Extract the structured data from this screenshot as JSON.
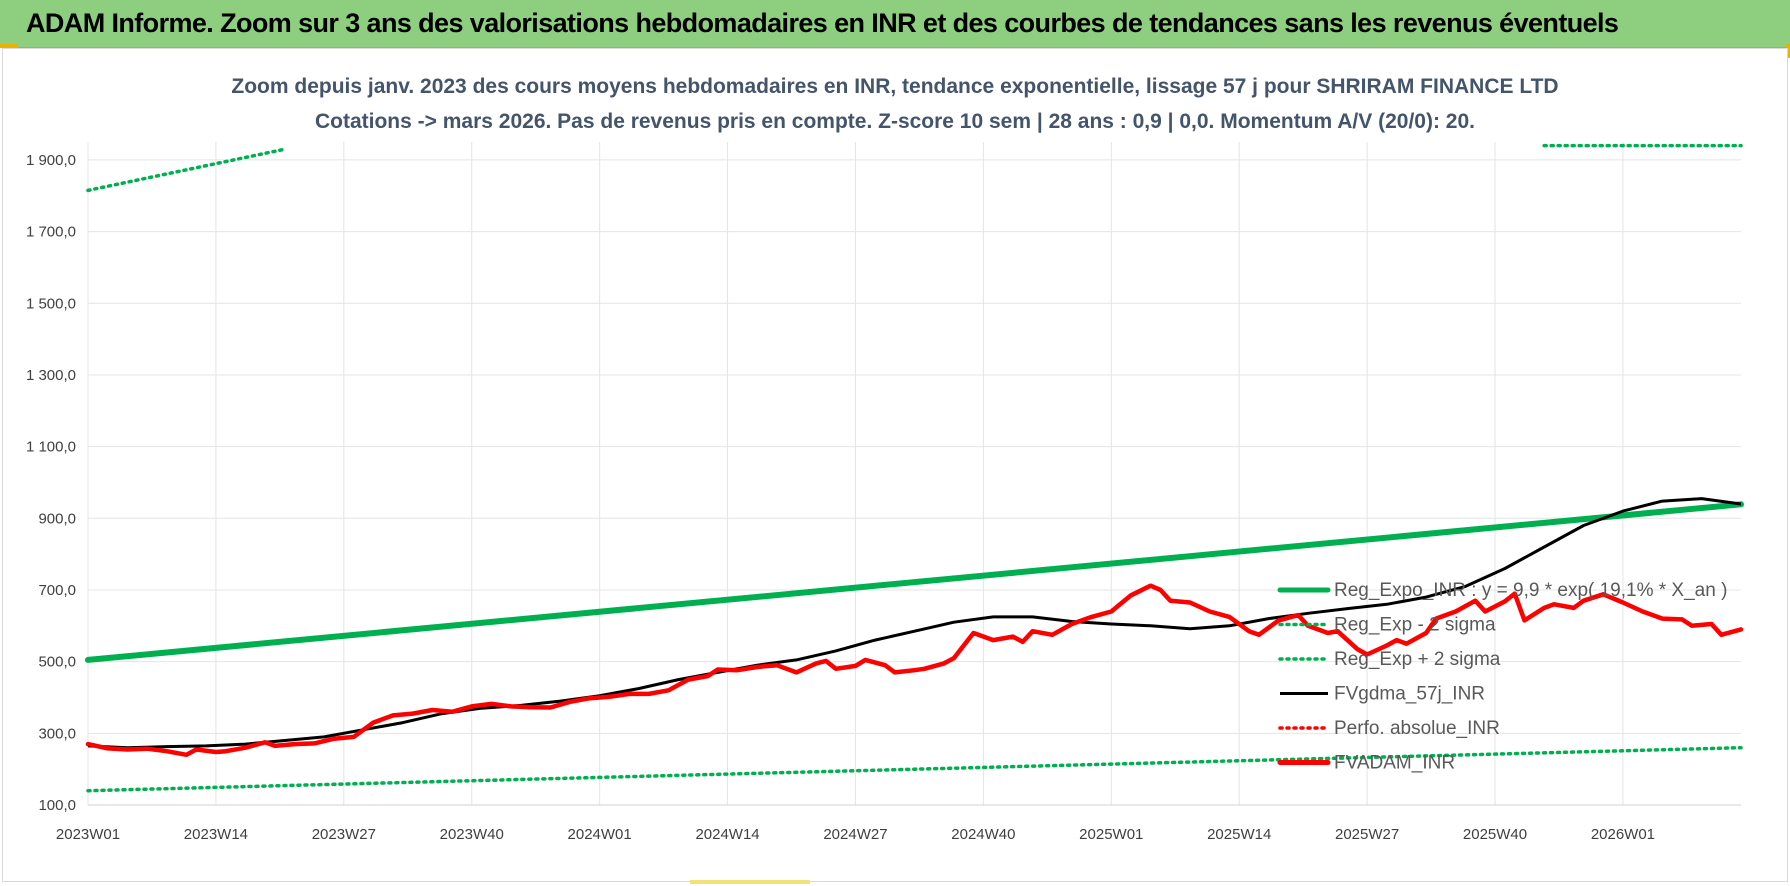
{
  "banner": {
    "title": "ADAM Informe. Zoom sur 3 ans des valorisations hebdomadaires en INR et des courbes de tendances sans les revenus éventuels"
  },
  "chart_data": {
    "type": "line",
    "title_line1": "Zoom depuis janv. 2023 des cours moyens hebdomadaires en INR, tendance exponentielle, lissage 57 j pour SHRIRAM FINANCE LTD",
    "title_line2": "Cotations -> mars 2026. Pas de revenus pris en compte. Z-score 10 sem | 28 ans : 0,9 | 0,0. Momentum A/V (20/0): 20.",
    "x_tick_labels": [
      "2023W01",
      "2023W14",
      "2023W27",
      "2023W40",
      "2024W01",
      "2024W14",
      "2024W27",
      "2024W40",
      "2025W01",
      "2025W14",
      "2025W27",
      "2025W40",
      "2026W01"
    ],
    "y_tick_labels": [
      "100,0",
      "300,0",
      "500,0",
      "700,0",
      "900,0",
      "1 100,0",
      "1 300,0",
      "1 500,0",
      "1 700,0",
      "1 900,0"
    ],
    "y_ticks": [
      100,
      300,
      500,
      700,
      900,
      1100,
      1300,
      1500,
      1700,
      1900
    ],
    "ylim": [
      100,
      1950
    ],
    "x_range_weeks": [
      0,
      168
    ],
    "grid": true,
    "legend_position": "right",
    "series": [
      {
        "name": "Reg_Expo_INR : y = 9,9 * exp( 19,1% *  X_an )",
        "color": "#00b050",
        "style": "solid-thick",
        "points": [
          [
            0,
            505
          ],
          [
            168,
            939
          ]
        ]
      },
      {
        "name": "Reg_Exp - 2 sigma",
        "color": "#00b050",
        "style": "dotted",
        "points": [
          [
            0,
            140
          ],
          [
            168,
            260
          ]
        ]
      },
      {
        "name": "Reg_Exp + 2 sigma",
        "color": "#00b050",
        "style": "dotted",
        "points": [
          [
            0,
            1815
          ],
          [
            20,
            1930
          ],
          [
            148,
            1940
          ],
          [
            168,
            1940
          ]
        ]
      },
      {
        "name": "FVgdma_57j_INR",
        "color": "#000000",
        "style": "solid",
        "points": [
          [
            0,
            265
          ],
          [
            4,
            260
          ],
          [
            8,
            263
          ],
          [
            12,
            265
          ],
          [
            16,
            270
          ],
          [
            20,
            280
          ],
          [
            24,
            290
          ],
          [
            28,
            310
          ],
          [
            32,
            330
          ],
          [
            36,
            355
          ],
          [
            40,
            370
          ],
          [
            44,
            378
          ],
          [
            48,
            390
          ],
          [
            52,
            405
          ],
          [
            56,
            425
          ],
          [
            60,
            450
          ],
          [
            64,
            470
          ],
          [
            68,
            490
          ],
          [
            72,
            505
          ],
          [
            76,
            530
          ],
          [
            80,
            560
          ],
          [
            84,
            585
          ],
          [
            88,
            610
          ],
          [
            92,
            625
          ],
          [
            96,
            625
          ],
          [
            100,
            612
          ],
          [
            104,
            605
          ],
          [
            108,
            600
          ],
          [
            112,
            592
          ],
          [
            116,
            600
          ],
          [
            120,
            620
          ],
          [
            124,
            635
          ],
          [
            128,
            648
          ],
          [
            132,
            660
          ],
          [
            136,
            680
          ],
          [
            140,
            710
          ],
          [
            144,
            760
          ],
          [
            148,
            820
          ],
          [
            152,
            880
          ],
          [
            156,
            920
          ],
          [
            160,
            948
          ],
          [
            164,
            955
          ],
          [
            168,
            940
          ]
        ]
      },
      {
        "name": "Perfo. absolue_INR",
        "color": "#ff0000",
        "style": "dotted",
        "points": []
      },
      {
        "name": "FVADAM_INR",
        "color": "#ff0000",
        "style": "solid-thick",
        "points": [
          [
            0,
            270
          ],
          [
            2,
            258
          ],
          [
            4,
            255
          ],
          [
            6,
            257
          ],
          [
            8,
            250
          ],
          [
            10,
            240
          ],
          [
            11,
            255
          ],
          [
            13,
            248
          ],
          [
            14,
            250
          ],
          [
            16,
            260
          ],
          [
            18,
            275
          ],
          [
            19,
            265
          ],
          [
            21,
            270
          ],
          [
            23,
            272
          ],
          [
            25,
            285
          ],
          [
            27,
            290
          ],
          [
            29,
            330
          ],
          [
            31,
            350
          ],
          [
            33,
            355
          ],
          [
            35,
            365
          ],
          [
            37,
            360
          ],
          [
            39,
            375
          ],
          [
            41,
            382
          ],
          [
            43,
            375
          ],
          [
            45,
            373
          ],
          [
            47,
            372
          ],
          [
            49,
            388
          ],
          [
            51,
            398
          ],
          [
            53,
            402
          ],
          [
            55,
            410
          ],
          [
            57,
            410
          ],
          [
            59,
            420
          ],
          [
            61,
            450
          ],
          [
            63,
            460
          ],
          [
            64,
            478
          ],
          [
            66,
            476
          ],
          [
            68,
            485
          ],
          [
            70,
            490
          ],
          [
            72,
            470
          ],
          [
            74,
            495
          ],
          [
            75,
            502
          ],
          [
            76,
            480
          ],
          [
            78,
            488
          ],
          [
            79,
            505
          ],
          [
            81,
            490
          ],
          [
            82,
            470
          ],
          [
            84,
            476
          ],
          [
            85,
            480
          ],
          [
            87,
            495
          ],
          [
            88,
            510
          ],
          [
            89,
            545
          ],
          [
            90,
            580
          ],
          [
            92,
            560
          ],
          [
            94,
            570
          ],
          [
            95,
            555
          ],
          [
            96,
            585
          ],
          [
            98,
            575
          ],
          [
            100,
            605
          ],
          [
            102,
            625
          ],
          [
            104,
            640
          ],
          [
            106,
            685
          ],
          [
            108,
            712
          ],
          [
            109,
            700
          ],
          [
            110,
            670
          ],
          [
            112,
            665
          ],
          [
            114,
            640
          ],
          [
            116,
            625
          ],
          [
            118,
            585
          ],
          [
            119,
            575
          ],
          [
            121,
            615
          ],
          [
            123,
            630
          ],
          [
            124,
            600
          ],
          [
            126,
            580
          ],
          [
            127,
            585
          ],
          [
            129,
            535
          ],
          [
            130,
            520
          ],
          [
            132,
            545
          ],
          [
            133,
            560
          ],
          [
            134,
            550
          ],
          [
            136,
            580
          ],
          [
            137,
            620
          ],
          [
            139,
            640
          ],
          [
            141,
            670
          ],
          [
            142,
            640
          ],
          [
            144,
            668
          ],
          [
            145,
            690
          ],
          [
            146,
            615
          ],
          [
            148,
            650
          ],
          [
            149,
            660
          ],
          [
            151,
            650
          ],
          [
            152,
            670
          ],
          [
            154,
            688
          ],
          [
            156,
            665
          ],
          [
            158,
            640
          ],
          [
            160,
            620
          ],
          [
            162,
            618
          ],
          [
            163,
            600
          ],
          [
            165,
            605
          ],
          [
            166,
            575
          ],
          [
            168,
            590
          ]
        ]
      }
    ]
  }
}
